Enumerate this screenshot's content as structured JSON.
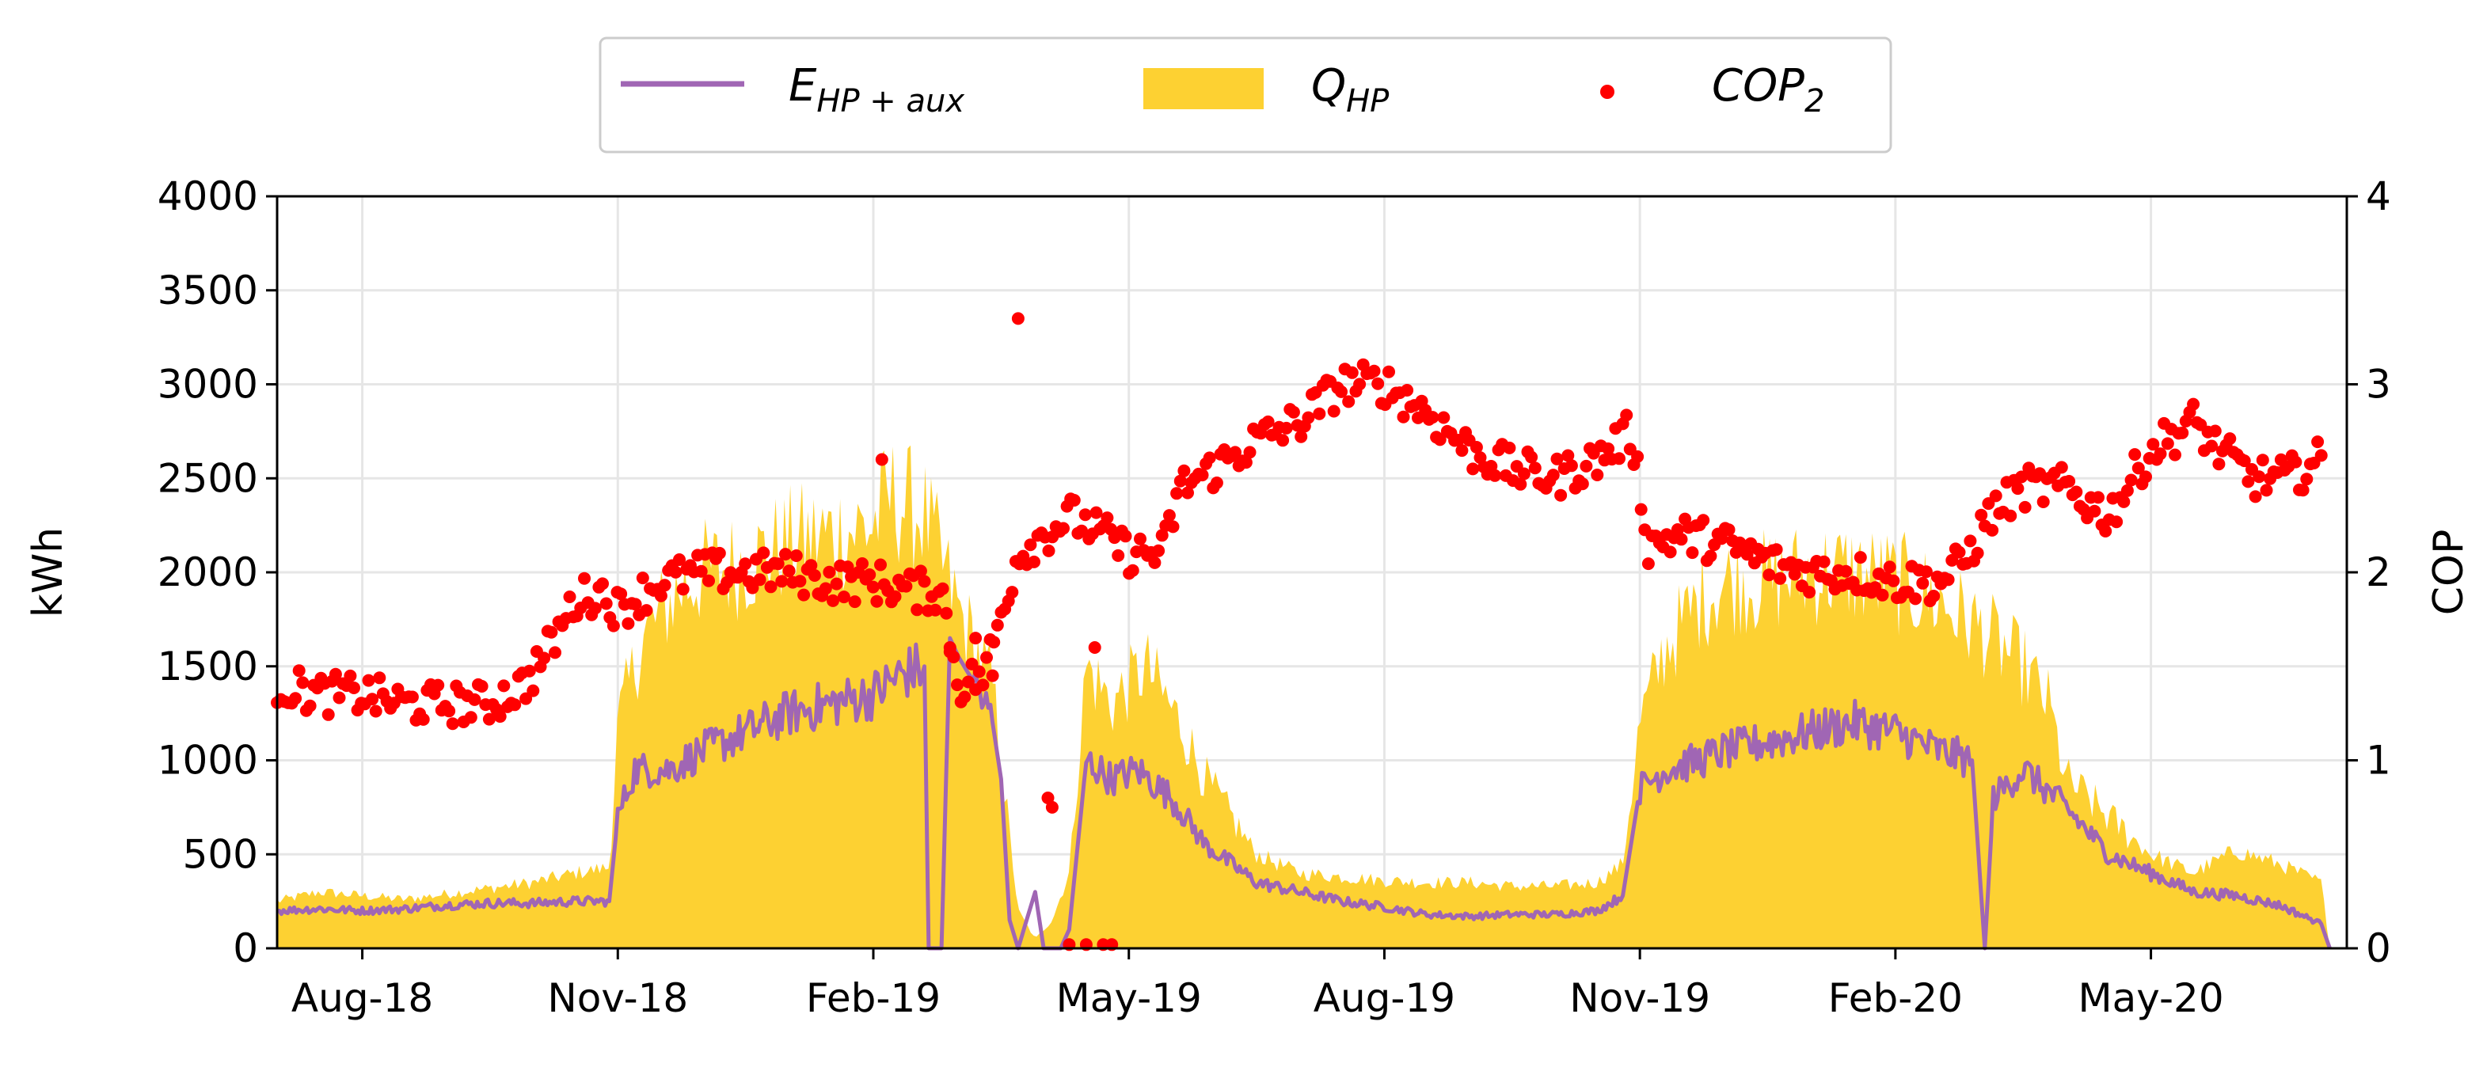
{
  "chart_data": {
    "type": "line",
    "title": "",
    "xlabel": "",
    "ylabel": "kWh",
    "y2label": "COP",
    "ylim": [
      0,
      4000
    ],
    "y2lim": [
      0,
      4
    ],
    "grid": true,
    "legend_position": "top-center",
    "x_ticks": [
      "Aug-18",
      "Nov-18",
      "Feb-19",
      "May-19",
      "Aug-19",
      "Nov-19",
      "Feb-20",
      "May-20"
    ],
    "y_ticks": [
      "0",
      "500",
      "1000",
      "1500",
      "2000",
      "2500",
      "3000",
      "3500",
      "4000"
    ],
    "y2_ticks": [
      "0",
      "1",
      "2",
      "3",
      "4"
    ],
    "x_domain_months": [
      0,
      24.3
    ],
    "x_tick_months": [
      1,
      4,
      7,
      10,
      13,
      16,
      19,
      22
    ],
    "legend": [
      {
        "key": "E_HP_aux",
        "base": "E",
        "sub": "HP + aux",
        "color": "#a066b4"
      },
      {
        "key": "Q_HP",
        "base": "Q",
        "sub": "HP",
        "color": "#fdd132"
      },
      {
        "key": "COP2",
        "base": "COP",
        "sub": "2",
        "color": "#ff0000"
      }
    ],
    "series": [
      {
        "name": "Q_HP",
        "axis": "left",
        "type": "area",
        "color": "#fdd132",
        "points": [
          [
            0,
            250
          ],
          [
            0.5,
            300
          ],
          [
            1,
            280
          ],
          [
            1.5,
            260
          ],
          [
            2,
            290
          ],
          [
            2.5,
            320
          ],
          [
            3,
            350
          ],
          [
            3.5,
            400
          ],
          [
            3.9,
            430
          ],
          [
            4.0,
            1200
          ],
          [
            4.3,
            1650
          ],
          [
            4.7,
            1900
          ],
          [
            5,
            2000
          ],
          [
            5.5,
            2050
          ],
          [
            6,
            2150
          ],
          [
            6.5,
            2200
          ],
          [
            7,
            2250
          ],
          [
            7.2,
            2400
          ],
          [
            7.6,
            2300
          ],
          [
            8.0,
            1800
          ],
          [
            8.4,
            1400
          ],
          [
            8.7,
            200
          ],
          [
            8.9,
            50
          ],
          [
            9.1,
            150
          ],
          [
            9.3,
            400
          ],
          [
            9.5,
            1500
          ],
          [
            9.8,
            1300
          ],
          [
            10.2,
            1500
          ],
          [
            10.6,
            1200
          ],
          [
            10.9,
            900
          ],
          [
            11.2,
            700
          ],
          [
            11.5,
            500
          ],
          [
            12,
            400
          ],
          [
            12.5,
            380
          ],
          [
            13,
            360
          ],
          [
            13.5,
            350
          ],
          [
            14,
            350
          ],
          [
            14.5,
            330
          ],
          [
            15,
            330
          ],
          [
            15.5,
            350
          ],
          [
            15.8,
            450
          ],
          [
            16.0,
            1200
          ],
          [
            16.3,
            1600
          ],
          [
            16.7,
            1850
          ],
          [
            17.0,
            1950
          ],
          [
            17.5,
            1950
          ],
          [
            18,
            2000
          ],
          [
            18.5,
            2000
          ],
          [
            19,
            1950
          ],
          [
            19.5,
            1850
          ],
          [
            20,
            1700
          ],
          [
            20.5,
            1500
          ],
          [
            20.8,
            1300
          ],
          [
            21.0,
            900
          ],
          [
            21.5,
            700
          ],
          [
            22,
            500
          ],
          [
            22.5,
            400
          ],
          [
            23,
            520
          ],
          [
            23.5,
            450
          ],
          [
            24.0,
            350
          ],
          [
            24.1,
            0
          ]
        ]
      },
      {
        "name": "E_HP_aux",
        "axis": "left",
        "type": "line",
        "color": "#a066b4",
        "points": [
          [
            0,
            200
          ],
          [
            0.5,
            210
          ],
          [
            1,
            200
          ],
          [
            1.5,
            210
          ],
          [
            2,
            230
          ],
          [
            2.5,
            240
          ],
          [
            3,
            240
          ],
          [
            3.5,
            250
          ],
          [
            3.9,
            250
          ],
          [
            4.0,
            700
          ],
          [
            4.2,
            950
          ],
          [
            4.6,
            950
          ],
          [
            5,
            1050
          ],
          [
            5.5,
            1150
          ],
          [
            6,
            1250
          ],
          [
            6.5,
            1300
          ],
          [
            7,
            1350
          ],
          [
            7.3,
            1450
          ],
          [
            7.6,
            1500
          ],
          [
            7.65,
            0
          ],
          [
            7.8,
            0
          ],
          [
            7.9,
            1650
          ],
          [
            8.0,
            1550
          ],
          [
            8.2,
            1400
          ],
          [
            8.4,
            1200
          ],
          [
            8.5,
            900
          ],
          [
            8.6,
            150
          ],
          [
            8.7,
            0
          ],
          [
            8.8,
            150
          ],
          [
            8.9,
            300
          ],
          [
            9.0,
            0
          ],
          [
            9.2,
            0
          ],
          [
            9.3,
            100
          ],
          [
            9.5,
            1000
          ],
          [
            9.8,
            900
          ],
          [
            10.1,
            950
          ],
          [
            10.5,
            800
          ],
          [
            10.9,
            550
          ],
          [
            11.2,
            450
          ],
          [
            11.5,
            350
          ],
          [
            12,
            300
          ],
          [
            12.5,
            250
          ],
          [
            13,
            220
          ],
          [
            13.5,
            180
          ],
          [
            14,
            170
          ],
          [
            14.5,
            180
          ],
          [
            15,
            180
          ],
          [
            15.5,
            200
          ],
          [
            15.8,
            280
          ],
          [
            16.0,
            850
          ],
          [
            16.3,
            950
          ],
          [
            16.7,
            1000
          ],
          [
            17,
            1050
          ],
          [
            17.5,
            1100
          ],
          [
            18,
            1150
          ],
          [
            18.5,
            1200
          ],
          [
            19,
            1150
          ],
          [
            19.5,
            1050
          ],
          [
            19.9,
            1000
          ],
          [
            20.05,
            0
          ],
          [
            20.15,
            800
          ],
          [
            20.5,
            950
          ],
          [
            21,
            750
          ],
          [
            21.5,
            500
          ],
          [
            22,
            400
          ],
          [
            22.5,
            300
          ],
          [
            23,
            280
          ],
          [
            23.5,
            230
          ],
          [
            24.0,
            130
          ],
          [
            24.1,
            0
          ]
        ]
      },
      {
        "name": "COP2",
        "axis": "right",
        "type": "scatter",
        "color": "#ff0000",
        "trend": [
          [
            0,
            1.4
          ],
          [
            0.5,
            1.35
          ],
          [
            1,
            1.35
          ],
          [
            1.5,
            1.3
          ],
          [
            2,
            1.3
          ],
          [
            2.5,
            1.3
          ],
          [
            2.9,
            1.4
          ],
          [
            3.2,
            1.6
          ],
          [
            3.5,
            1.85
          ],
          [
            3.8,
            1.9
          ],
          [
            4,
            1.8
          ],
          [
            4.5,
            1.95
          ],
          [
            5,
            2.0
          ],
          [
            5.5,
            2.0
          ],
          [
            6,
            2.0
          ],
          [
            6.5,
            1.95
          ],
          [
            7,
            1.95
          ],
          [
            7.5,
            1.9
          ],
          [
            7.8,
            1.9
          ],
          [
            8.0,
            1.4
          ],
          [
            8.3,
            1.45
          ],
          [
            8.7,
            2.1
          ],
          [
            9,
            2.2
          ],
          [
            9.3,
            2.3
          ],
          [
            9.7,
            2.2
          ],
          [
            10,
            2.1
          ],
          [
            10.4,
            2.1
          ],
          [
            10.6,
            2.45
          ],
          [
            11,
            2.55
          ],
          [
            11.5,
            2.7
          ],
          [
            12,
            2.8
          ],
          [
            12.5,
            3.0
          ],
          [
            13,
            3.0
          ],
          [
            13.5,
            2.85
          ],
          [
            14,
            2.65
          ],
          [
            14.5,
            2.55
          ],
          [
            15,
            2.5
          ],
          [
            15.5,
            2.6
          ],
          [
            15.9,
            2.75
          ],
          [
            16.1,
            2.15
          ],
          [
            16.5,
            2.2
          ],
          [
            17,
            2.15
          ],
          [
            17.5,
            2.05
          ],
          [
            18,
            2.0
          ],
          [
            18.5,
            2.0
          ],
          [
            19,
            1.95
          ],
          [
            19.5,
            1.95
          ],
          [
            19.8,
            2.05
          ],
          [
            20.1,
            2.3
          ],
          [
            20.5,
            2.45
          ],
          [
            21,
            2.45
          ],
          [
            21.5,
            2.3
          ],
          [
            22,
            2.65
          ],
          [
            22.5,
            2.8
          ],
          [
            22.8,
            2.65
          ],
          [
            23.2,
            2.5
          ],
          [
            23.6,
            2.5
          ],
          [
            24,
            2.6
          ]
        ],
        "outliers": [
          [
            7.1,
            2.6
          ],
          [
            8.7,
            3.35
          ],
          [
            9.3,
            0.02
          ],
          [
            9.5,
            0.02
          ],
          [
            9.7,
            0.02
          ],
          [
            9.8,
            0.02
          ],
          [
            9.05,
            0.8
          ],
          [
            9.1,
            0.75
          ],
          [
            7.9,
            1.6
          ],
          [
            8.2,
            1.65
          ],
          [
            9.6,
            1.6
          ],
          [
            8.4,
            1.45
          ]
        ]
      }
    ]
  }
}
